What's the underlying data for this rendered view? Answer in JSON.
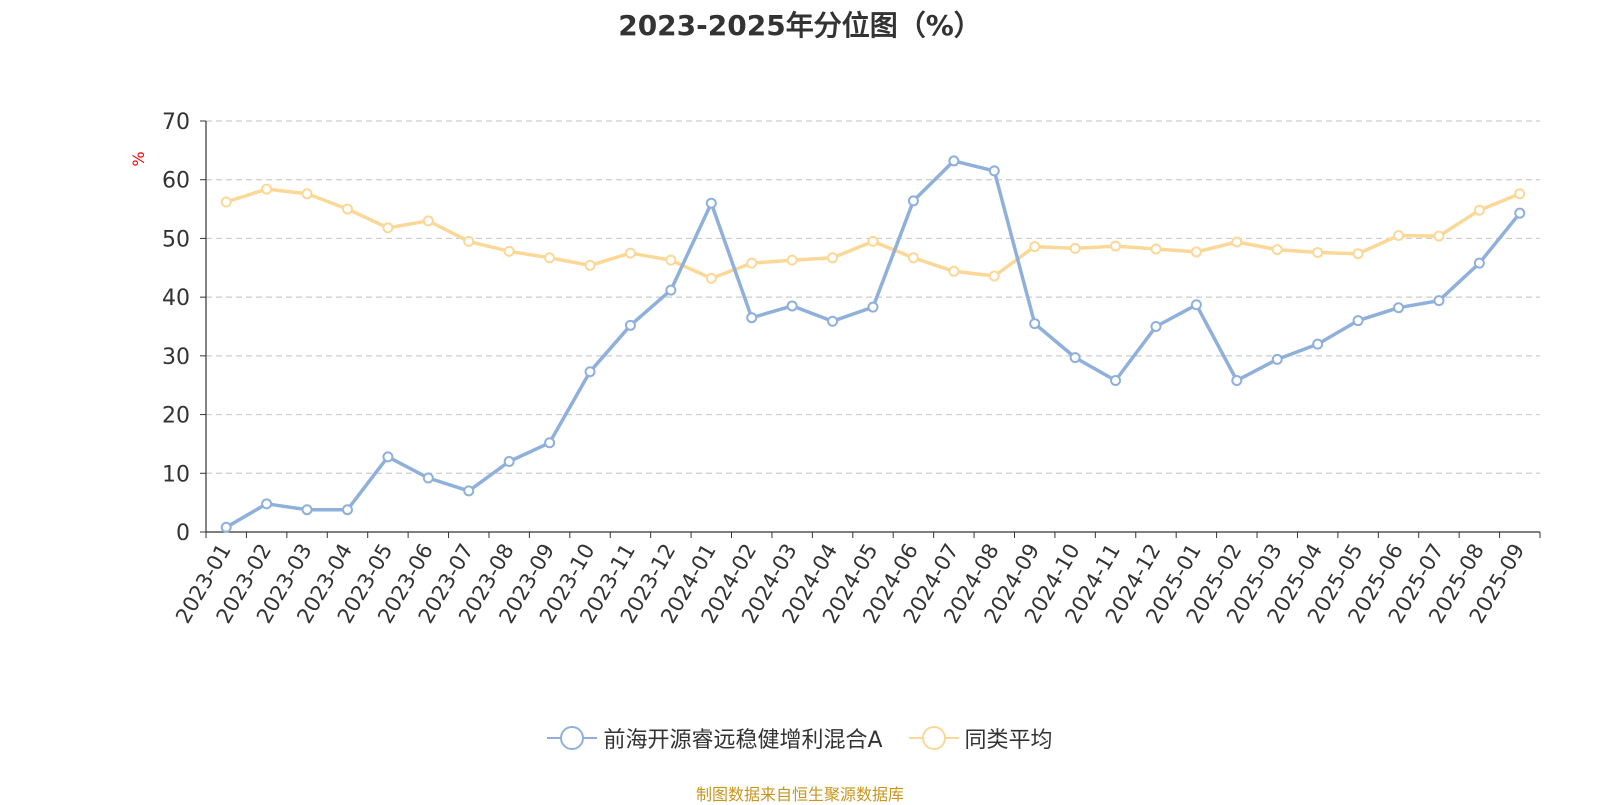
{
  "colors": {
    "series_a": "#8eb0db",
    "series_b": "#fbd897",
    "axis": "#333333",
    "grid": "#cccccc",
    "unit": "#ff0000",
    "source": "#c8961e"
  },
  "source_text": "制图数据来自恒生聚源数据库",
  "chart_data": {
    "type": "line",
    "title": "2023-2025年分位图（%）",
    "ylabel": "%",
    "ylim": [
      0,
      70
    ],
    "yticks": [
      0,
      10,
      20,
      30,
      40,
      50,
      60,
      70
    ],
    "grid": true,
    "legend_position": "bottom-center",
    "categories": [
      "2023-01",
      "2023-02",
      "2023-03",
      "2023-04",
      "2023-05",
      "2023-06",
      "2023-07",
      "2023-08",
      "2023-09",
      "2023-10",
      "2023-11",
      "2023-12",
      "2024-01",
      "2024-02",
      "2024-03",
      "2024-04",
      "2024-05",
      "2024-06",
      "2024-07",
      "2024-08",
      "2024-09",
      "2024-10",
      "2024-11",
      "2024-12",
      "2025-01",
      "2025-02",
      "2025-03",
      "2025-04",
      "2025-05",
      "2025-06",
      "2025-07",
      "2025-08",
      "2025-09"
    ],
    "series": [
      {
        "name": "前海开源睿远稳健增利混合A",
        "color": "#8eb0db",
        "values": [
          0.8,
          4.8,
          3.8,
          3.8,
          12.8,
          9.2,
          7.0,
          12.0,
          15.2,
          27.3,
          35.2,
          41.2,
          56.0,
          36.5,
          38.5,
          35.9,
          38.3,
          56.4,
          63.2,
          61.5,
          35.5,
          29.7,
          25.8,
          35.0,
          38.7,
          25.8,
          29.4,
          32.0,
          36.0,
          38.2,
          39.4,
          45.8,
          54.3
        ]
      },
      {
        "name": "同类平均",
        "color": "#fbd897",
        "values": [
          56.2,
          58.4,
          57.6,
          55.0,
          51.8,
          53.0,
          49.5,
          47.8,
          46.7,
          45.4,
          47.5,
          46.3,
          43.2,
          45.8,
          46.3,
          46.7,
          49.5,
          46.7,
          44.4,
          43.6,
          48.6,
          48.3,
          48.7,
          48.2,
          47.7,
          49.4,
          48.1,
          47.6,
          47.4,
          50.5,
          50.4,
          54.8,
          57.6
        ]
      }
    ]
  }
}
